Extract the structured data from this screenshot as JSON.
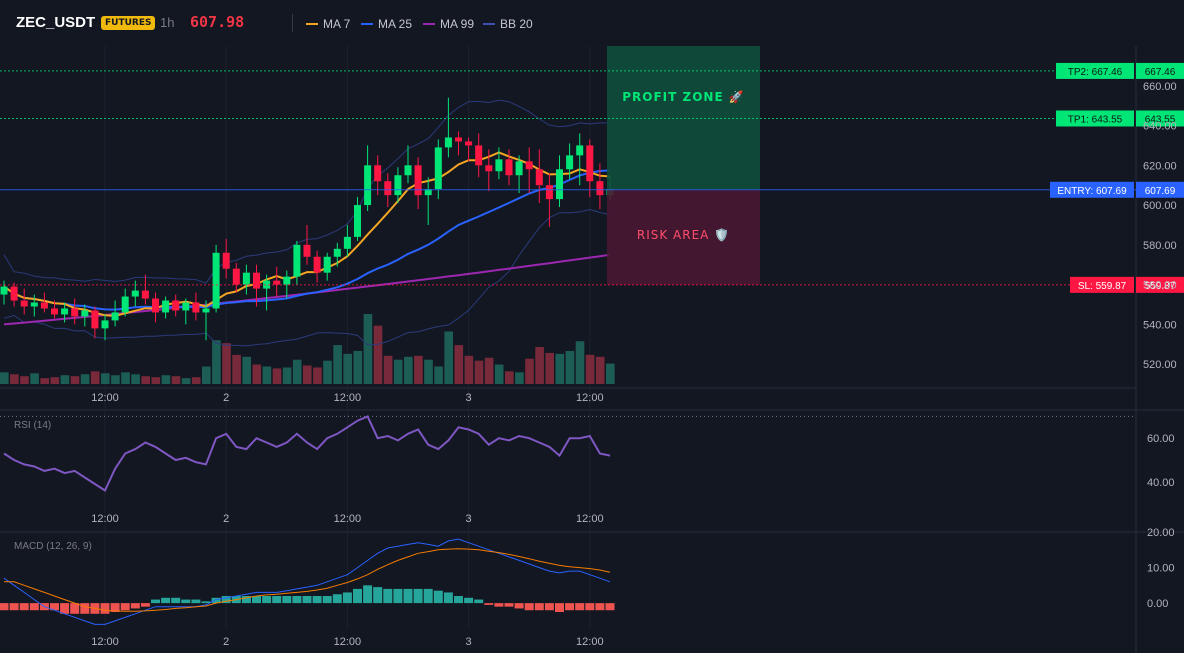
{
  "header": {
    "symbol": "ZEC_USDT",
    "badge": "FUTURES",
    "timeframe": "1h",
    "price": "607.98",
    "legend": [
      {
        "label": "MA 7",
        "color": "#f5a623"
      },
      {
        "label": "MA 25",
        "color": "#2962ff"
      },
      {
        "label": "MA 99",
        "color": "#9c27b0"
      },
      {
        "label": "BB 20",
        "color": "#3f51b5"
      }
    ]
  },
  "colors": {
    "up": "#00e676",
    "down": "#ff1744",
    "rsi": "#7e57c2",
    "macd": "#2962ff",
    "signal": "#f57c00",
    "background": "#131722"
  },
  "zones": {
    "profit_label": "PROFIT ZONE 🚀",
    "risk_label": "RISK AREA 🛡️"
  },
  "levels": [
    {
      "label": "TP2: 667.46",
      "price_text": "667.46",
      "value": 667.46,
      "color": "#00e676",
      "kind": "tp2"
    },
    {
      "label": "TP1: 643.55",
      "price_text": "643.55",
      "value": 643.55,
      "color": "#00e676",
      "kind": "tp1"
    },
    {
      "label": "ENTRY: 607.69",
      "price_text": "607.69",
      "value": 607.69,
      "color": "#2962ff",
      "kind": "entry"
    },
    {
      "label": "SL: 559.87",
      "price_text": "559.87",
      "value": 559.87,
      "color": "#ff1744",
      "kind": "sl"
    }
  ],
  "x_ticks": [
    {
      "label": "12:00",
      "index": 10
    },
    {
      "label": "2",
      "index": 22
    },
    {
      "label": "12:00",
      "index": 34
    },
    {
      "label": "3",
      "index": 46
    },
    {
      "label": "12:00",
      "index": 58
    }
  ],
  "chart_data": [
    {
      "type": "candlestick",
      "title": "ZEC_USDT 1h",
      "ylim": [
        508,
        680
      ],
      "y_ticks": [
        "520.00",
        "540.00",
        "560.00",
        "580.00",
        "600.00",
        "620.00",
        "640.00",
        "660.00"
      ],
      "y_tick_values": [
        520,
        540,
        560,
        580,
        600,
        620,
        640,
        660
      ],
      "ohlc": [
        [
          555,
          562,
          550,
          559
        ],
        [
          559,
          561,
          549,
          552
        ],
        [
          552,
          558,
          545,
          549
        ],
        [
          549,
          555,
          544,
          551
        ],
        [
          551,
          556,
          546,
          548
        ],
        [
          548,
          552,
          543,
          545
        ],
        [
          545,
          551,
          541,
          548
        ],
        [
          548,
          553,
          540,
          544
        ],
        [
          544,
          550,
          539,
          547
        ],
        [
          547,
          549,
          533,
          538
        ],
        [
          538,
          545,
          532,
          542
        ],
        [
          542,
          552,
          539,
          546
        ],
        [
          546,
          558,
          544,
          554
        ],
        [
          554,
          562,
          549,
          557
        ],
        [
          557,
          565,
          550,
          553
        ],
        [
          553,
          556,
          541,
          546
        ],
        [
          546,
          554,
          543,
          552
        ],
        [
          552,
          555,
          544,
          547
        ],
        [
          547,
          553,
          540,
          551
        ],
        [
          551,
          556,
          542,
          546
        ],
        [
          546,
          552,
          532,
          548
        ],
        [
          548,
          580,
          546,
          576
        ],
        [
          576,
          583,
          563,
          568
        ],
        [
          568,
          571,
          556,
          560
        ],
        [
          560,
          570,
          555,
          566
        ],
        [
          566,
          570,
          549,
          558
        ],
        [
          558,
          565,
          547,
          562
        ],
        [
          562,
          569,
          554,
          560
        ],
        [
          560,
          567,
          553,
          564
        ],
        [
          564,
          582,
          560,
          580
        ],
        [
          580,
          590,
          570,
          574
        ],
        [
          574,
          577,
          561,
          566
        ],
        [
          566,
          576,
          562,
          574
        ],
        [
          574,
          581,
          569,
          578
        ],
        [
          578,
          590,
          574,
          584
        ],
        [
          584,
          604,
          582,
          600
        ],
        [
          600,
          630,
          597,
          620
        ],
        [
          620,
          625,
          605,
          612
        ],
        [
          612,
          616,
          599,
          605
        ],
        [
          605,
          619,
          601,
          615
        ],
        [
          615,
          630,
          611,
          620
        ],
        [
          620,
          624,
          598,
          605
        ],
        [
          605,
          614,
          590,
          608
        ],
        [
          608,
          633,
          603,
          629
        ],
        [
          629,
          654,
          624,
          634
        ],
        [
          634,
          637,
          625,
          632
        ],
        [
          632,
          634,
          622,
          630
        ],
        [
          630,
          636,
          614,
          620
        ],
        [
          620,
          628,
          607,
          617
        ],
        [
          617,
          629,
          613,
          623
        ],
        [
          623,
          628,
          610,
          615
        ],
        [
          615,
          625,
          606,
          622
        ],
        [
          622,
          629,
          606,
          618
        ],
        [
          618,
          628,
          601,
          610
        ],
        [
          610,
          616,
          589,
          603
        ],
        [
          603,
          625,
          599,
          618
        ],
        [
          618,
          631,
          613,
          625
        ],
        [
          625,
          636,
          610,
          630
        ],
        [
          630,
          633,
          604,
          612
        ],
        [
          612,
          621,
          598,
          605
        ],
        [
          605,
          615,
          602,
          608
        ]
      ],
      "volume": [
        12,
        10,
        8,
        11,
        6,
        7,
        9,
        8,
        10,
        13,
        11,
        9,
        12,
        10,
        8,
        7,
        9,
        8,
        6,
        7,
        18,
        45,
        42,
        30,
        28,
        20,
        18,
        16,
        17,
        25,
        19,
        17,
        24,
        40,
        31,
        34,
        72,
        60,
        29,
        25,
        28,
        29,
        25,
        18,
        54,
        40,
        29,
        24,
        27,
        20,
        13,
        12,
        26,
        38,
        32,
        31,
        34,
        44,
        30,
        28,
        21
      ]
    },
    {
      "type": "line",
      "title": "RSI (14)",
      "ylim": [
        28,
        72
      ],
      "y_ticks": [
        "40.00",
        "60.00"
      ],
      "y_tick_values": [
        40,
        60
      ],
      "values": [
        53,
        50,
        48,
        47,
        45,
        46,
        44,
        45,
        42,
        39,
        36,
        46,
        53,
        55,
        58,
        56,
        53,
        50,
        51,
        49,
        48,
        60,
        62,
        56,
        55,
        60,
        58,
        56,
        58,
        62,
        58,
        55,
        60,
        62,
        65,
        68,
        70,
        60,
        61,
        59,
        62,
        64,
        57,
        55,
        59,
        65,
        64,
        62,
        57,
        60,
        59,
        61,
        60,
        58,
        56,
        52,
        60,
        60,
        61,
        53,
        52
      ]
    },
    {
      "type": "bar+line",
      "title": "MACD (12, 26, 9)",
      "ylim": [
        -7,
        20
      ],
      "y_ticks": [
        "0.00",
        "10.00",
        "20.00"
      ],
      "y_tick_values": [
        0,
        10,
        20
      ],
      "macd": [
        7,
        5,
        3,
        1,
        -1,
        -2,
        -3,
        -4,
        -5,
        -6,
        -6,
        -5,
        -4,
        -3,
        -2,
        -1,
        -1,
        -1,
        -1,
        -1,
        -0.5,
        1,
        1.5,
        2,
        2.5,
        3,
        3,
        3,
        3.5,
        4,
        4.5,
        5,
        6,
        7,
        8,
        10,
        12,
        14,
        15.5,
        16,
        16.5,
        17,
        16.5,
        16,
        17.5,
        18,
        17,
        16,
        15,
        14,
        13,
        12,
        11,
        10,
        9,
        8.5,
        9,
        9,
        8,
        7,
        6
      ],
      "signal": [
        6,
        6,
        5,
        4,
        3,
        2,
        1,
        0,
        -1,
        -1.5,
        -2,
        -2.2,
        -2.3,
        -2.3,
        -2.2,
        -2,
        -1.8,
        -1.5,
        -1.3,
        -1,
        -0.8,
        0,
        0.5,
        1,
        1.5,
        2,
        2.3,
        2.5,
        2.8,
        3,
        3.3,
        3.7,
        4.2,
        5,
        5.8,
        6.8,
        8,
        9.5,
        10.8,
        12,
        13,
        14,
        14.5,
        15,
        15.2,
        15.3,
        15.2,
        15,
        14.6,
        14.2,
        13.7,
        13.1,
        12.5,
        11.8,
        11.2,
        10.6,
        10.2,
        10,
        9.7,
        9.3,
        8.7
      ],
      "histogram": [
        -2,
        -2,
        -2,
        -2,
        -2,
        -2,
        -3,
        -3,
        -3,
        -3,
        -3,
        -2.5,
        -2,
        -1.5,
        -1,
        1,
        1.5,
        1.5,
        1,
        1,
        0.5,
        1.5,
        2,
        2,
        2,
        2,
        2,
        2,
        2,
        2,
        2,
        2,
        2,
        2.5,
        3,
        4,
        5,
        4.5,
        4,
        4,
        4,
        4,
        4,
        3.5,
        3,
        2,
        1.5,
        1,
        -0.5,
        -1,
        -1,
        -1.5,
        -2,
        -2,
        -2,
        -2.5,
        -2,
        -2,
        -2,
        -2,
        -2
      ]
    }
  ]
}
